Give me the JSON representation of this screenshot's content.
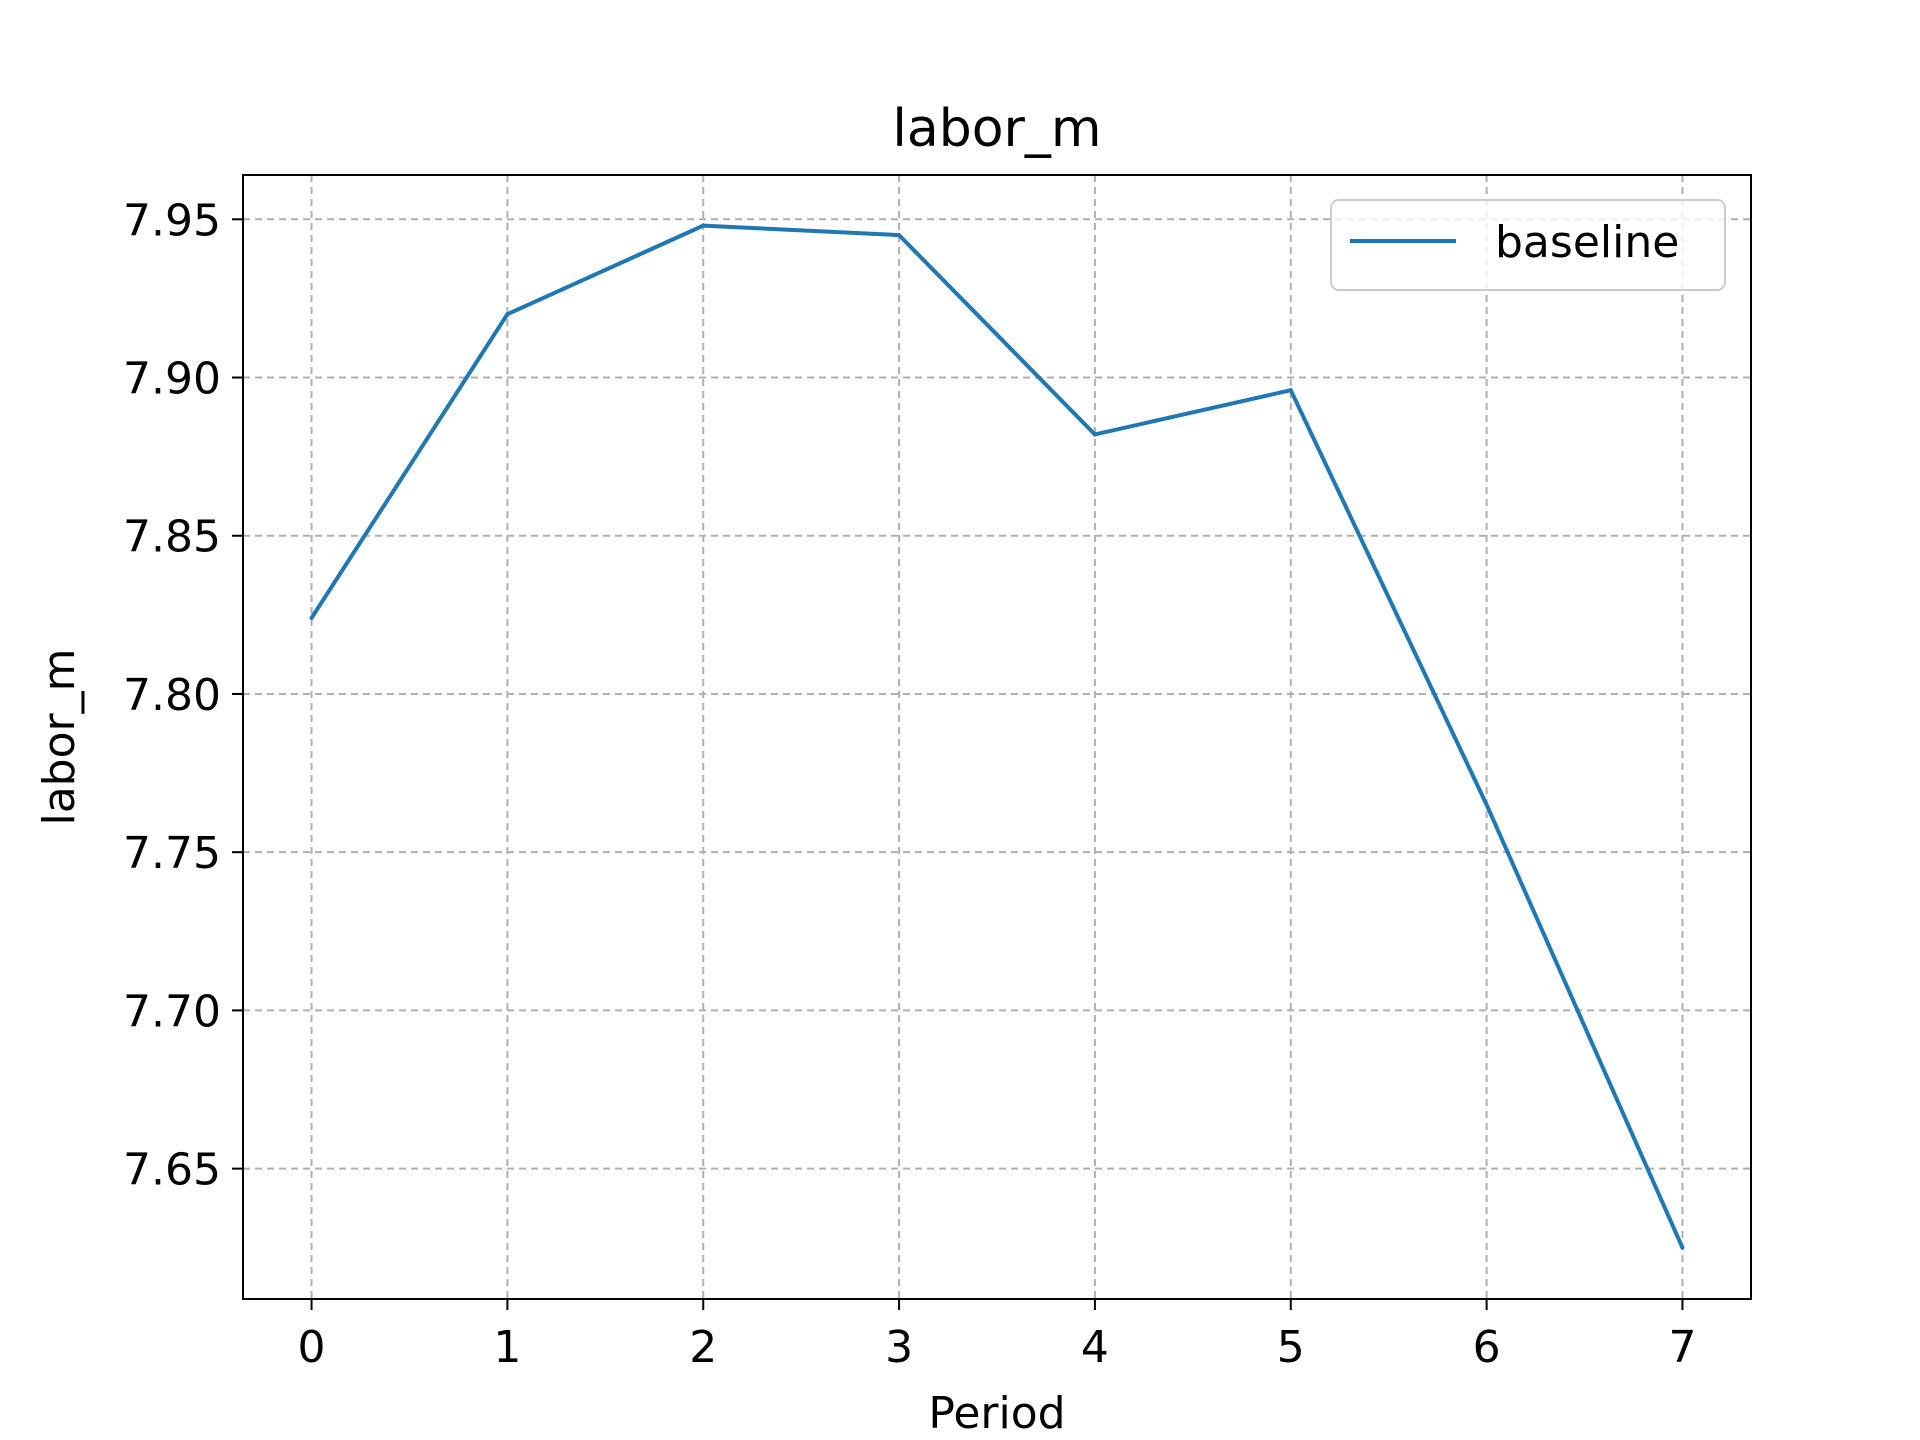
{
  "chart_data": {
    "type": "line",
    "title": "labor_m",
    "xlabel": "Period",
    "ylabel": "labor_m",
    "x": [
      0,
      1,
      2,
      3,
      4,
      5,
      6,
      7
    ],
    "series": [
      {
        "name": "baseline",
        "color": "#1f77b4",
        "values": [
          7.824,
          7.92,
          7.948,
          7.945,
          7.882,
          7.896,
          7.765,
          7.625
        ]
      }
    ],
    "xticks": [
      "0",
      "1",
      "2",
      "3",
      "4",
      "5",
      "6",
      "7"
    ],
    "yticks": [
      "7.65",
      "7.70",
      "7.75",
      "7.80",
      "7.85",
      "7.90",
      "7.95"
    ],
    "ytick_values": [
      7.65,
      7.7,
      7.75,
      7.8,
      7.85,
      7.9,
      7.95
    ],
    "xlim": [
      -0.35,
      7.35
    ],
    "ylim": [
      7.6088,
      7.964
    ],
    "grid": true,
    "grid_style": "dashed",
    "legend_position": "top-right"
  }
}
